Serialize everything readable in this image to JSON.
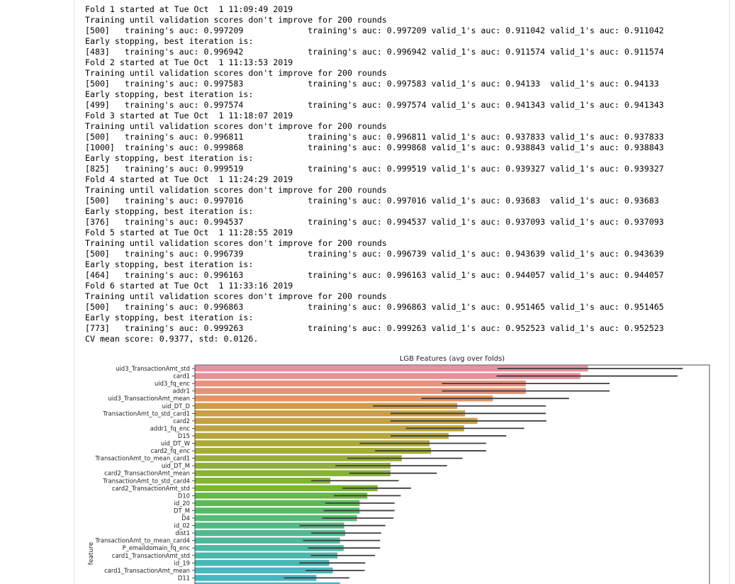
{
  "output_log": {
    "lines": [
      "Fold 1 started at Tue Oct  1 11:09:49 2019",
      "Training until validation scores don't improve for 200 rounds",
      "[500]\ttraining's auc: 0.997209\ttraining's auc: 0.997209\tvalid_1's auc: 0.911042 valid_1's auc: 0.911042",
      "Early stopping, best iteration is:",
      "[483]\ttraining's auc: 0.996942\ttraining's auc: 0.996942\tvalid_1's auc: 0.911574 valid_1's auc: 0.911574",
      "Fold 2 started at Tue Oct  1 11:13:53 2019",
      "Training until validation scores don't improve for 200 rounds",
      "[500]\ttraining's auc: 0.997583\ttraining's auc: 0.997583\tvalid_1's auc: 0.94133  valid_1's auc: 0.94133",
      "Early stopping, best iteration is:",
      "[499]\ttraining's auc: 0.997574\ttraining's auc: 0.997574\tvalid_1's auc: 0.941343 valid_1's auc: 0.941343",
      "Fold 3 started at Tue Oct  1 11:18:07 2019",
      "Training until validation scores don't improve for 200 rounds",
      "[500]\ttraining's auc: 0.996811\ttraining's auc: 0.996811\tvalid_1's auc: 0.937833 valid_1's auc: 0.937833",
      "[1000]\ttraining's auc: 0.999868\ttraining's auc: 0.999868\tvalid_1's auc: 0.938843 valid_1's auc: 0.938843",
      "Early stopping, best iteration is:",
      "[825]\ttraining's auc: 0.999519\ttraining's auc: 0.999519\tvalid_1's auc: 0.939327 valid_1's auc: 0.939327",
      "Fold 4 started at Tue Oct  1 11:24:29 2019",
      "Training until validation scores don't improve for 200 rounds",
      "[500]\ttraining's auc: 0.997016\ttraining's auc: 0.997016\tvalid_1's auc: 0.93683  valid_1's auc: 0.93683",
      "Early stopping, best iteration is:",
      "[376]\ttraining's auc: 0.994537\ttraining's auc: 0.994537\tvalid_1's auc: 0.937093 valid_1's auc: 0.937093",
      "Fold 5 started at Tue Oct  1 11:28:55 2019",
      "Training until validation scores don't improve for 200 rounds",
      "[500]\ttraining's auc: 0.996739\ttraining's auc: 0.996739\tvalid_1's auc: 0.943639 valid_1's auc: 0.943639",
      "Early stopping, best iteration is:",
      "[464]\ttraining's auc: 0.996163\ttraining's auc: 0.996163\tvalid_1's auc: 0.944057 valid_1's auc: 0.944057",
      "Fold 6 started at Tue Oct  1 11:33:16 2019",
      "Training until validation scores don't improve for 200 rounds",
      "[500]\ttraining's auc: 0.996863\ttraining's auc: 0.996863\tvalid_1's auc: 0.951465 valid_1's auc: 0.951465",
      "Early stopping, best iteration is:",
      "[773]\ttraining's auc: 0.999263\ttraining's auc: 0.999263\tvalid_1's auc: 0.952523 valid_1's auc: 0.952523",
      "CV mean score: 0.9377, std: 0.0126."
    ]
  },
  "chart_data": {
    "type": "bar",
    "orientation": "horizontal",
    "title": "LGB Features (avg over folds)",
    "xlabel": "",
    "ylabel": "feature",
    "xlim": [
      0,
      1000
    ],
    "categories": [
      "uid3_TransactionAmt_std",
      "card1",
      "uid3_fq_enc",
      "addr1",
      "uid3_TransactionAmt_mean",
      "uid_DT_D",
      "TransactionAmt_to_std_card1",
      "card2",
      "addr1_fq_enc",
      "D15",
      "uid_DT_W",
      "card2_fq_enc",
      "TransactionAmt_to_mean_card1",
      "uid_DT_M",
      "card2_TransactionAmt_mean",
      "TransactionAmt_to_std_card4",
      "card2_TransactionAmt_std",
      "D10",
      "id_20",
      "DT_M",
      "D4",
      "id_02",
      "dist1",
      "TransactionAmt_to_mean_card4",
      "P_emaildomain_fq_enc",
      "card1_TransactionAmt_std",
      "id_19",
      "card1_TransactionAmt_mean",
      "D11",
      ""
    ],
    "values": [
      764,
      749,
      643,
      643,
      579,
      510,
      525,
      549,
      523,
      493,
      456,
      459,
      402,
      380,
      380,
      263,
      355,
      335,
      320,
      320,
      315,
      290,
      292,
      282,
      289,
      277,
      261,
      268,
      236,
      282
    ],
    "err_low": [
      588,
      586,
      480,
      480,
      440,
      346,
      380,
      380,
      410,
      380,
      320,
      350,
      296,
      273,
      300,
      226,
      287,
      270,
      253,
      250,
      247,
      203,
      226,
      210,
      220,
      225,
      203,
      215,
      173,
      210
    ],
    "err_high": [
      948,
      938,
      806,
      806,
      727,
      682,
      682,
      683,
      640,
      605,
      566,
      566,
      520,
      490,
      470,
      396,
      420,
      400,
      388,
      388,
      386,
      370,
      362,
      360,
      360,
      350,
      331,
      330,
      300,
      340
    ],
    "bar_colors": [
      "#ea8fa0",
      "#ea8f97",
      "#e8927f",
      "#e59177",
      "#e29564",
      "#d39b46",
      "#cb9e42",
      "#c4a041",
      "#bca33d",
      "#b4a63b",
      "#aba93a",
      "#a3ac39",
      "#9aae37",
      "#90b035",
      "#87b234",
      "#80b432",
      "#78b632",
      "#65ba3d",
      "#5bba55",
      "#57bb66",
      "#55bb75",
      "#52ba83",
      "#4fba8f",
      "#4eb99a",
      "#4cb9a3",
      "#4ab8ad",
      "#48b7b5",
      "#47b6bd",
      "#46b5c4",
      "#46b5c4"
    ]
  }
}
